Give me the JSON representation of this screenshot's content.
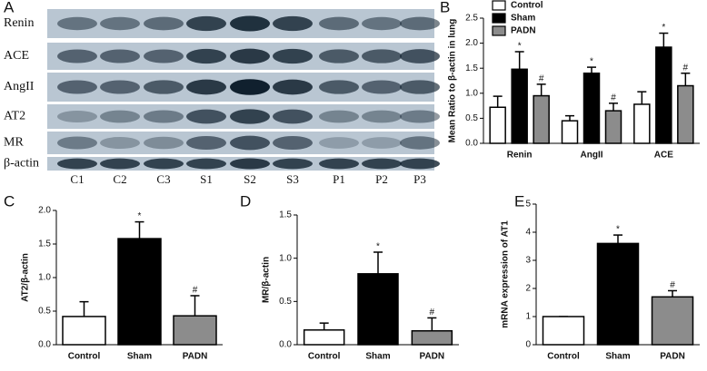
{
  "blot": {
    "letter": "A",
    "rows": [
      "Renin",
      "ACE",
      "AngII",
      "AT2",
      "MR",
      "β-actin"
    ],
    "lanes": [
      "C1",
      "C2",
      "C3",
      "S1",
      "S2",
      "S3",
      "P1",
      "P2",
      "P3"
    ]
  },
  "chart_data": [
    {
      "type": "bar",
      "panel": "B",
      "ylabel": "Mean Ratio to β-actin in lung",
      "categories": [
        "Renin",
        "AngII",
        "ACE"
      ],
      "series": [
        {
          "name": "Control",
          "color": "#ffffff",
          "values": [
            0.72,
            0.45,
            0.78
          ],
          "errors": [
            0.22,
            0.1,
            0.25
          ],
          "annotations": [
            null,
            null,
            null
          ]
        },
        {
          "name": "Sham",
          "color": "#000000",
          "values": [
            1.48,
            1.4,
            1.92
          ],
          "errors": [
            0.35,
            0.12,
            0.28
          ],
          "annotations": [
            "*",
            "*",
            "*"
          ]
        },
        {
          "name": "PADN",
          "color": "#8c8c8c",
          "values": [
            0.95,
            0.65,
            1.15
          ],
          "errors": [
            0.23,
            0.15,
            0.25
          ],
          "annotations": [
            "#",
            "#",
            "#"
          ]
        }
      ],
      "ylim": [
        0,
        2.5
      ],
      "yticks": [
        {
          "value": 0,
          "label": "0.0"
        },
        {
          "value": 0.5,
          "label": "0.5"
        },
        {
          "value": 1,
          "label": "1.0"
        },
        {
          "value": 1.5,
          "label": "1.5"
        },
        {
          "value": 2,
          "label": "2.0"
        },
        {
          "value": 2.5,
          "label": "2.5"
        }
      ],
      "legend": "upper left"
    },
    {
      "type": "bar",
      "panel": "C",
      "ylabel": "AT2/β-actin",
      "categories": [
        "Control",
        "Sham",
        "PADN"
      ],
      "values": [
        0.42,
        1.58,
        0.43
      ],
      "errors": [
        0.22,
        0.25,
        0.3
      ],
      "colors": [
        "#ffffff",
        "#000000",
        "#8c8c8c"
      ],
      "annotations": [
        null,
        "*",
        "#"
      ],
      "ylim": [
        0,
        2
      ],
      "yticks": [
        {
          "value": 0,
          "label": "0.0"
        },
        {
          "value": 0.5,
          "label": "0.5"
        },
        {
          "value": 1,
          "label": "1.0"
        },
        {
          "value": 1.5,
          "label": "1.5"
        },
        {
          "value": 2,
          "label": "2.0"
        }
      ]
    },
    {
      "type": "bar",
      "panel": "D",
      "ylabel": "MR/β-actin",
      "categories": [
        "Control",
        "Sham",
        "PADN"
      ],
      "values": [
        0.17,
        0.82,
        0.16
      ],
      "errors": [
        0.08,
        0.25,
        0.15
      ],
      "colors": [
        "#ffffff",
        "#000000",
        "#8c8c8c"
      ],
      "annotations": [
        null,
        "*",
        "#"
      ],
      "ylim": [
        0,
        1.5
      ],
      "yticks": [
        {
          "value": 0,
          "label": "0.0"
        },
        {
          "value": 0.5,
          "label": "0.5"
        },
        {
          "value": 1,
          "label": "1.0"
        },
        {
          "value": 1.5,
          "label": "1.5"
        }
      ]
    },
    {
      "type": "bar",
      "panel": "E",
      "ylabel": "mRNA expression of AT1",
      "categories": [
        "Control",
        "Sham",
        "PADN"
      ],
      "values": [
        1,
        3.6,
        1.7
      ],
      "errors": [
        0,
        0.3,
        0.22
      ],
      "colors": [
        "#ffffff",
        "#000000",
        "#8c8c8c"
      ],
      "annotations": [
        null,
        "*",
        "#"
      ],
      "ylim": [
        0,
        5
      ],
      "yticks": [
        0,
        1,
        2,
        3,
        4,
        5
      ]
    }
  ]
}
